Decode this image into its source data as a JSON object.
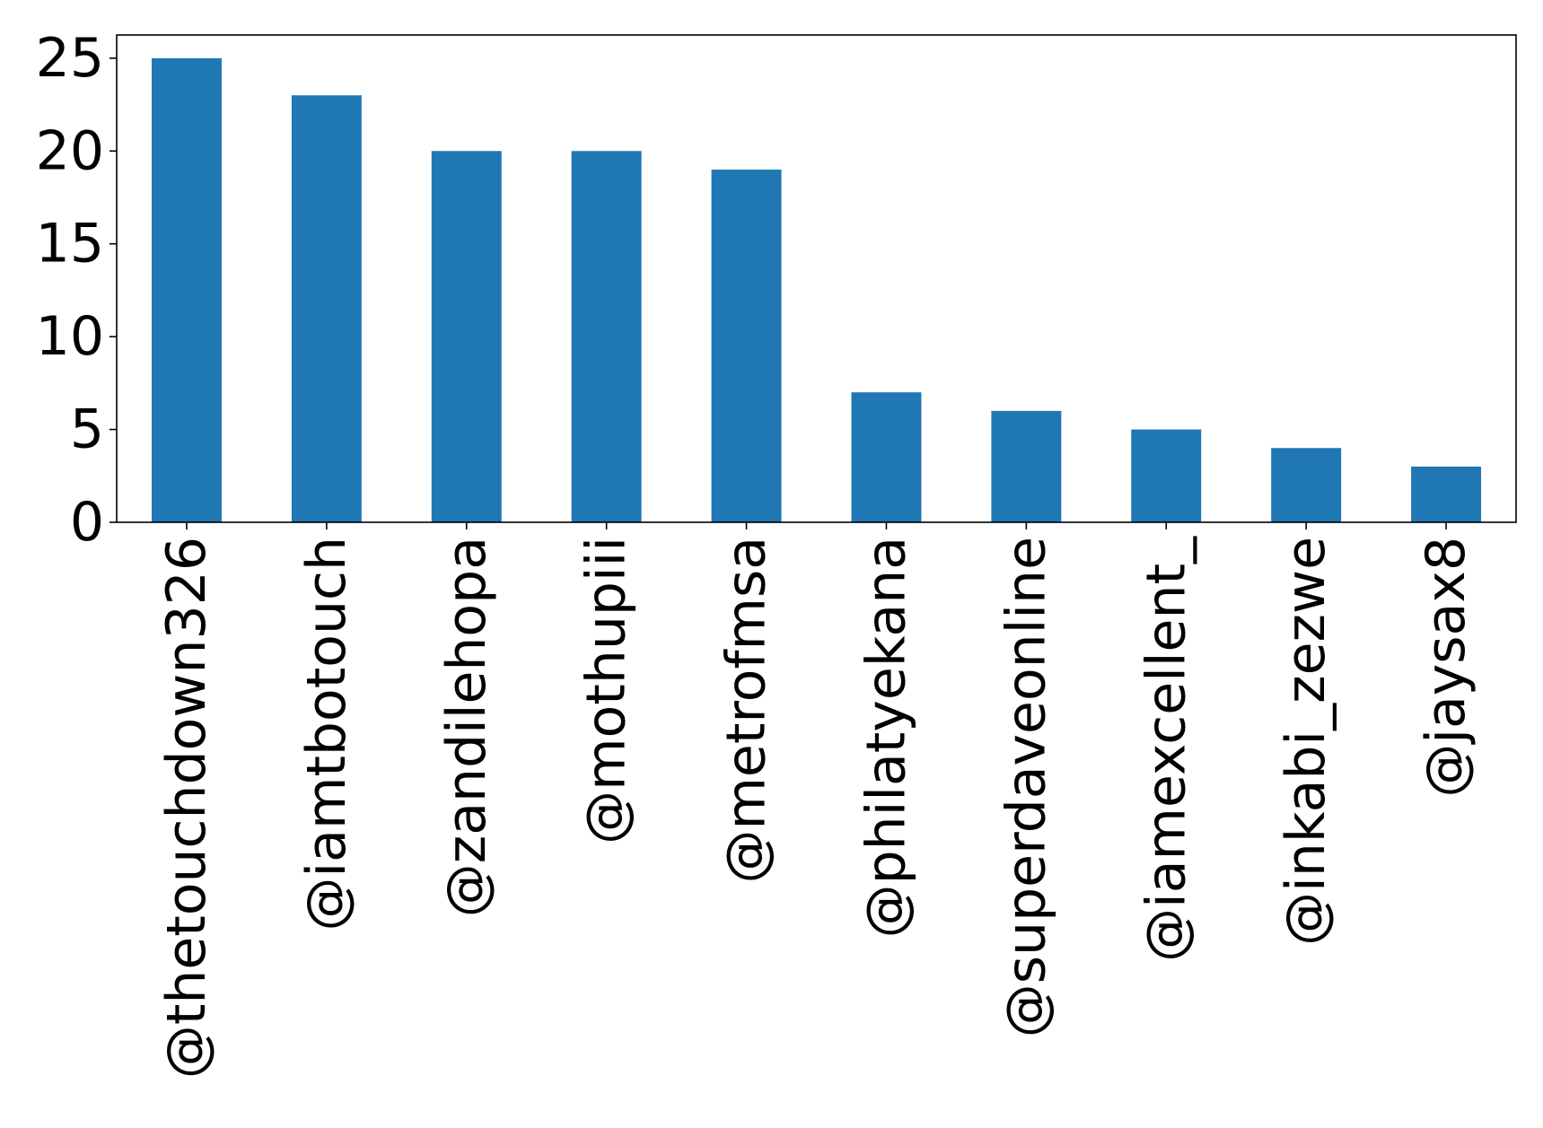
{
  "chart_data": {
    "type": "bar",
    "categories": [
      "@thetouchdown326",
      "@iamtbotouch",
      "@zandilehopa",
      "@mothupiii",
      "@metrofmsa",
      "@philatyekana",
      "@superdaveonline",
      "@iamexcellent_",
      "@inkabi_zezwe",
      "@jaysax8"
    ],
    "values": [
      25,
      23,
      20,
      20,
      19,
      7,
      6,
      5,
      4,
      3
    ],
    "yticks": [
      "0",
      "5",
      "10",
      "15",
      "20",
      "25"
    ],
    "ylim": [
      0,
      26.25
    ],
    "title": "",
    "xlabel": "",
    "ylabel": "",
    "grid": false,
    "bar_color": "#1f77b4"
  }
}
